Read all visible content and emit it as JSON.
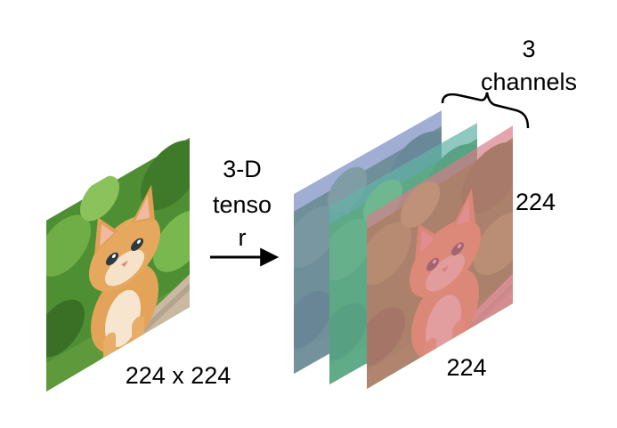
{
  "input_image": {
    "caption": "224 x 224",
    "subject": "kitten-photo"
  },
  "arrow": {
    "label_lines": [
      "3-D",
      "tenso",
      "r"
    ]
  },
  "tensor": {
    "channels_label_lines": [
      "3",
      "channels"
    ],
    "height_label": "224",
    "width_label": "224",
    "channels": [
      {
        "name_color": "blue",
        "tint": "#7b8fc4"
      },
      {
        "name_color": "green",
        "tint": "#62b3a6"
      },
      {
        "name_color": "red",
        "tint": "#d87a88"
      }
    ]
  },
  "colors": {
    "text": "#000000",
    "arrow": "#000000",
    "grass": "#5a9a3a",
    "kitten_fur": "#e3a45a",
    "wood": "#c9b9a3"
  }
}
